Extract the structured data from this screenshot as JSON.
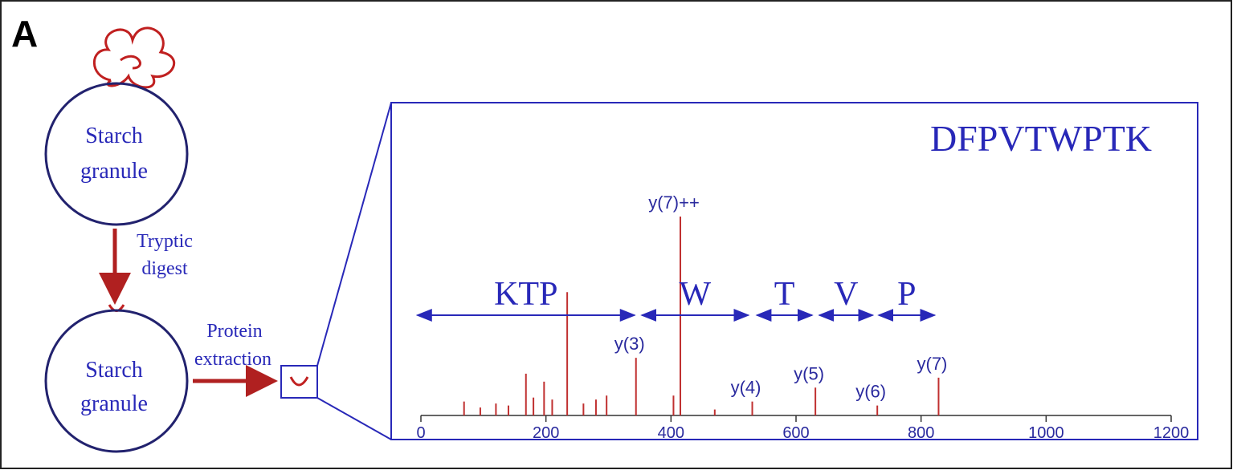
{
  "panel_label": "A",
  "nodes": [
    {
      "label": [
        "Starch",
        "granule"
      ]
    },
    {
      "label": [
        "Starch",
        "granule"
      ]
    }
  ],
  "steps": [
    {
      "label": [
        "Tryptic",
        "digest"
      ]
    },
    {
      "label": [
        "Protein",
        "extraction"
      ]
    }
  ],
  "spectrum": {
    "peptide": "DFPVTWPTK",
    "xlim": [
      0,
      1200
    ],
    "xticks": [
      0,
      200,
      400,
      600,
      800,
      1000,
      1200
    ],
    "ylim": [
      0,
      100
    ],
    "peaks": [
      {
        "x": 69,
        "y": 7
      },
      {
        "x": 95,
        "y": 4
      },
      {
        "x": 120,
        "y": 6
      },
      {
        "x": 140,
        "y": 5
      },
      {
        "x": 168,
        "y": 21
      },
      {
        "x": 180,
        "y": 9
      },
      {
        "x": 197,
        "y": 17
      },
      {
        "x": 210,
        "y": 8
      },
      {
        "x": 234,
        "y": 62
      },
      {
        "x": 260,
        "y": 6
      },
      {
        "x": 280,
        "y": 8
      },
      {
        "x": 297,
        "y": 10
      },
      {
        "x": 344,
        "y": 29,
        "label": "y(3)"
      },
      {
        "x": 404,
        "y": 10
      },
      {
        "x": 415,
        "y": 100,
        "label": "y(7)++"
      },
      {
        "x": 470,
        "y": 3
      },
      {
        "x": 530,
        "y": 7,
        "label": "y(4)"
      },
      {
        "x": 631,
        "y": 14,
        "label": "y(5)"
      },
      {
        "x": 730,
        "y": 5,
        "label": "y(6)"
      },
      {
        "x": 828,
        "y": 19,
        "label": "y(7)"
      }
    ],
    "sequence_ranges": [
      {
        "label": "KTP",
        "from": -8,
        "to": 344
      },
      {
        "label": "W",
        "from": 351,
        "to": 526
      },
      {
        "label": "T",
        "from": 535,
        "to": 628
      },
      {
        "label": "V",
        "from": 635,
        "to": 725
      },
      {
        "label": "P",
        "from": 730,
        "to": 824
      }
    ]
  }
}
